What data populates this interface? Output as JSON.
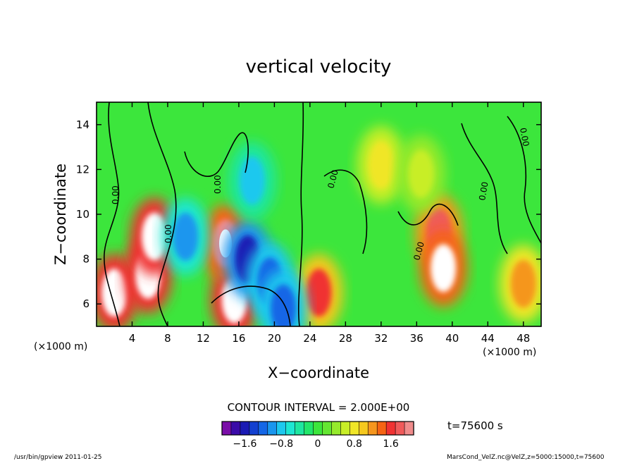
{
  "chart_data": {
    "type": "heatmap",
    "title": "vertical velocity",
    "xlabel": "X−coordinate",
    "ylabel": "Z−coordinate",
    "x_unit_label": "(×1000 m)",
    "xlim": [
      0,
      50
    ],
    "ylim": [
      5,
      15
    ],
    "xticks": [
      4,
      8,
      12,
      16,
      20,
      24,
      28,
      32,
      36,
      40,
      44,
      48
    ],
    "yticks": [
      6,
      8,
      10,
      12,
      14
    ],
    "contour_interval_text": "CONTOUR INTERVAL = 2.000E+00",
    "contour_label": "0.00",
    "time_text": "t=75600 s",
    "colorbar": {
      "ticks": [
        "−1.6",
        "−0.8",
        "0",
        "0.8",
        "1.6"
      ],
      "colors": [
        "#7a0ea8",
        "#3a0aa8",
        "#1a1ab4",
        "#1240d0",
        "#1466e6",
        "#1a96ee",
        "#1ec8ee",
        "#1ee6d2",
        "#1ee6a0",
        "#22e66a",
        "#3ce63c",
        "#64e632",
        "#96ea2c",
        "#c8ee28",
        "#f0e628",
        "#f5c81e",
        "#f5961e",
        "#f56414",
        "#f03232",
        "#f05a5a",
        "#f08c8c"
      ]
    },
    "footer_left": "/usr/bin/gpview   2011-01-25",
    "footer_right": "MarsCond_VelZ.nc@VelZ,z=5000:15000,t=75600",
    "features": [
      {
        "x": 2.0,
        "y": 6.5,
        "value": 3.0
      },
      {
        "x": 5.8,
        "y": 7.3,
        "value": 3.0
      },
      {
        "x": 6.5,
        "y": 9.0,
        "value": 2.8
      },
      {
        "x": 15.5,
        "y": 6.2,
        "value": 3.0
      },
      {
        "x": 14.5,
        "y": 8.7,
        "value": 2.4
      },
      {
        "x": 25.0,
        "y": 6.5,
        "value": 1.8
      },
      {
        "x": 38.5,
        "y": 9.2,
        "value": 2.0
      },
      {
        "x": 39.0,
        "y": 7.6,
        "value": 2.6
      },
      {
        "x": 48.0,
        "y": 6.9,
        "value": 1.4
      },
      {
        "x": 32.0,
        "y": 12.2,
        "value": 1.0
      },
      {
        "x": 36.5,
        "y": 11.8,
        "value": 0.7
      },
      {
        "x": 17.0,
        "y": 8.0,
        "value": -1.8
      },
      {
        "x": 19.5,
        "y": 7.0,
        "value": -1.5
      },
      {
        "x": 10.0,
        "y": 9.0,
        "value": -1.2
      },
      {
        "x": 17.5,
        "y": 11.5,
        "value": -0.9
      },
      {
        "x": 21.0,
        "y": 5.8,
        "value": -1.3
      }
    ]
  }
}
